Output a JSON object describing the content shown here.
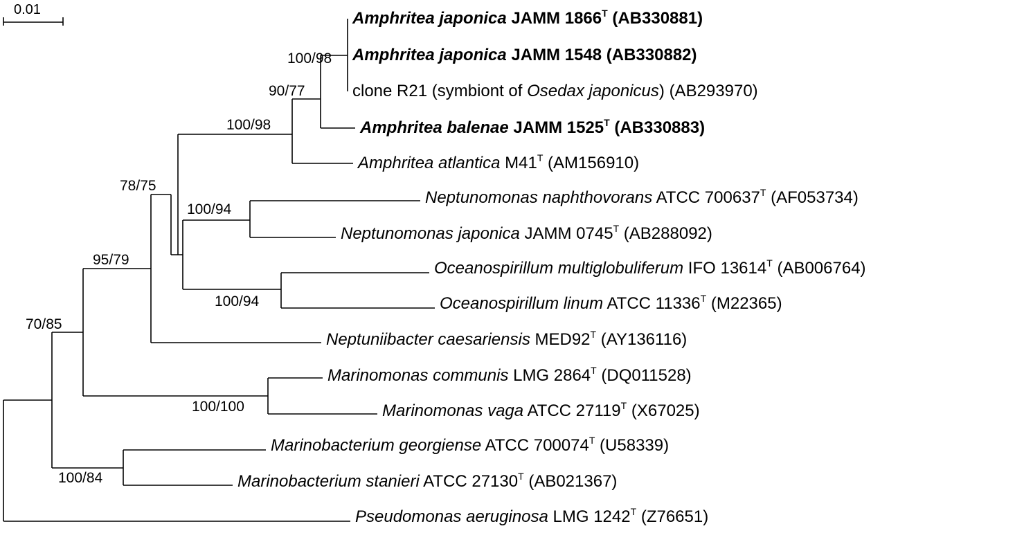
{
  "scale_bar": {
    "label": "0.01"
  },
  "taxa": [
    {
      "id": "aj1866",
      "genus_species": "Amphritea japonica",
      "strain": "JAMM 1866",
      "type_strain": true,
      "accession": "(AB330881)",
      "bold": true
    },
    {
      "id": "aj1548",
      "genus_species": "Amphritea japonica",
      "strain": "JAMM 1548",
      "type_strain": false,
      "accession": "(AB330882)",
      "bold": true
    },
    {
      "id": "r21",
      "prefix": "clone R21 (symbiont of ",
      "host": "Osedax japonicus",
      "suffix": ")",
      "accession": "(AB293970)",
      "bold": false
    },
    {
      "id": "ab1525",
      "genus_species": "Amphritea balenae",
      "strain": "JAMM 1525",
      "type_strain": true,
      "accession": "(AB330883)",
      "bold": true
    },
    {
      "id": "aatl",
      "genus_species": "Amphritea atlantica",
      "strain": "M41",
      "type_strain": true,
      "accession": "(AM156910)",
      "bold": false
    },
    {
      "id": "nnaph",
      "genus_species": "Neptunomonas naphthovorans",
      "strain": "ATCC 700637",
      "type_strain": true,
      "accession": "(AF053734)",
      "bold": false
    },
    {
      "id": "njap",
      "genus_species": "Neptunomonas japonica",
      "strain": "JAMM 0745",
      "type_strain": true,
      "accession": "(AB288092)",
      "bold": false
    },
    {
      "id": "omul",
      "genus_species": "Oceanospirillum multiglobuliferum",
      "strain": "IFO 13614",
      "type_strain": true,
      "accession": "(AB006764)",
      "bold": false
    },
    {
      "id": "olin",
      "genus_species": "Oceanospirillum linum",
      "strain": "ATCC 11336",
      "type_strain": true,
      "accession": "(M22365)",
      "bold": false
    },
    {
      "id": "ncae",
      "genus_species": "Neptuniibacter caesariensis",
      "strain": "MED92",
      "type_strain": true,
      "accession": "(AY136116)",
      "bold": false
    },
    {
      "id": "mcom",
      "genus_species": "Marinomonas communis",
      "strain": "LMG 2864",
      "type_strain": true,
      "accession": "(DQ011528)",
      "bold": false
    },
    {
      "id": "mvag",
      "genus_species": "Marinomonas vaga",
      "strain": "ATCC 27119",
      "type_strain": true,
      "accession": "(X67025)",
      "bold": false
    },
    {
      "id": "mgeo",
      "genus_species": "Marinobacterium georgiense",
      "strain": "ATCC 700074",
      "type_strain": true,
      "accession": "(U58339)",
      "bold": false
    },
    {
      "id": "msta",
      "genus_species": "Marinobacterium stanieri",
      "strain": "ATCC 27130",
      "type_strain": true,
      "accession": "(AB021367)",
      "bold": false
    },
    {
      "id": "paer",
      "genus_species": "Pseudomonas aeruginosa",
      "strain": "LMG 1242",
      "type_strain": true,
      "accession": "(Z76651)",
      "bold": false
    }
  ],
  "type_mark": "T",
  "bootstrap": [
    {
      "id": "n_amph_jap",
      "value": "100/98"
    },
    {
      "id": "n_amph_90",
      "value": "90/77"
    },
    {
      "id": "n_amph_all",
      "value": "100/98"
    },
    {
      "id": "n_78",
      "value": "78/75"
    },
    {
      "id": "n_nept",
      "value": "100/94"
    },
    {
      "id": "n_ocean",
      "value": "100/94"
    },
    {
      "id": "n_95",
      "value": "95/79"
    },
    {
      "id": "n_70",
      "value": "70/85"
    },
    {
      "id": "n_marinomonas",
      "value": "100/100"
    },
    {
      "id": "n_marinobacterium",
      "value": "100/84"
    }
  ]
}
